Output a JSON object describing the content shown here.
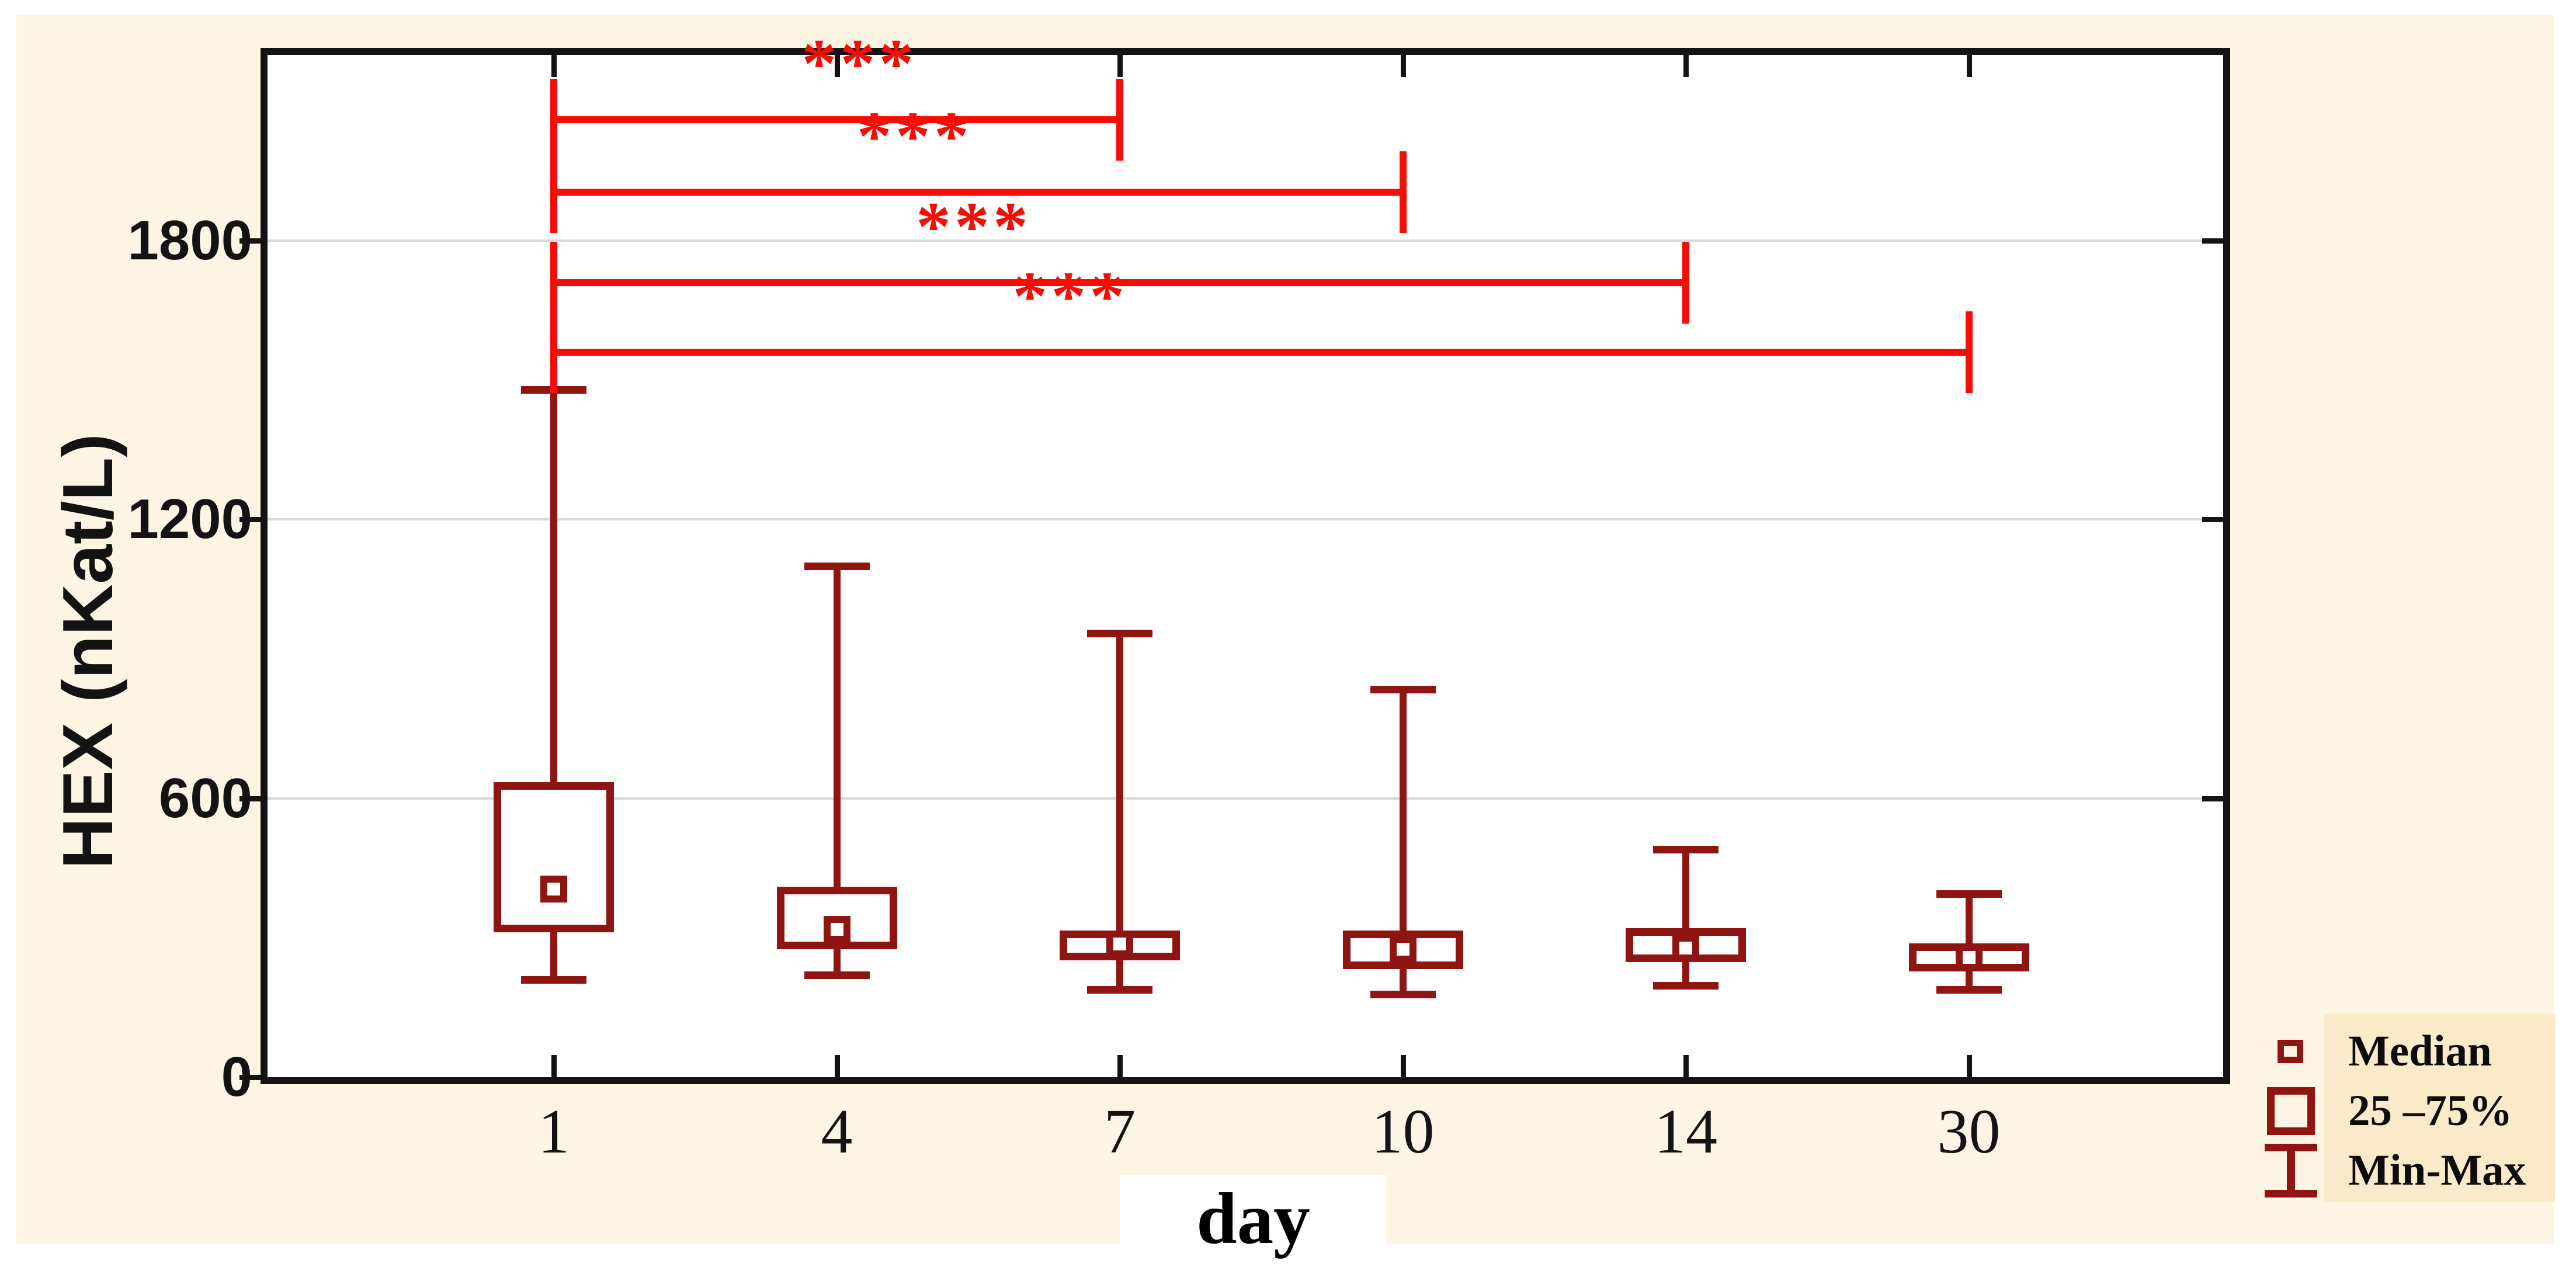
{
  "figure": {
    "background_color": "#ffffff",
    "panel_color": "#fcf5e3",
    "legend_background_color": "#faeac9",
    "frame_color": "#131313",
    "grid_color": "#d9d9d9",
    "box_color": "#8e1511",
    "significance_color": "#f80c06"
  },
  "chart_data": {
    "type": "boxplot",
    "xlabel": "day",
    "ylabel": "HEX (nKat/L)",
    "categories": [
      "1",
      "4",
      "7",
      "10",
      "14",
      "30"
    ],
    "y_ticks": [
      0,
      600,
      1200,
      1800
    ],
    "y_tick_labels": [
      "0",
      "600",
      "1200",
      "1800"
    ],
    "ylim": [
      0,
      2200
    ],
    "grid": "horizontal gridlines at 600, 1200, 1800",
    "boxes": [
      {
        "category": "1",
        "min": 210,
        "q1": 312,
        "median": 405,
        "q3": 635,
        "max": 1480
      },
      {
        "category": "4",
        "min": 220,
        "q1": 275,
        "median": 318,
        "q3": 410,
        "max": 1100
      },
      {
        "category": "7",
        "min": 188,
        "q1": 252,
        "median": 287,
        "q3": 315,
        "max": 955
      },
      {
        "category": "10",
        "min": 178,
        "q1": 233,
        "median": 275,
        "q3": 315,
        "max": 835
      },
      {
        "category": "14",
        "min": 198,
        "q1": 248,
        "median": 278,
        "q3": 320,
        "max": 490
      },
      {
        "category": "30",
        "min": 188,
        "q1": 228,
        "median": 258,
        "q3": 288,
        "max": 395
      }
    ],
    "significance_bars": [
      {
        "from": "1",
        "to": "7",
        "y": 2060,
        "label": "***"
      },
      {
        "from": "1",
        "to": "10",
        "y": 1905,
        "label": "***"
      },
      {
        "from": "1",
        "to": "14",
        "y": 1710,
        "label": "***"
      },
      {
        "from": "1",
        "to": "30",
        "y": 1560,
        "label": "***"
      }
    ],
    "legend": {
      "position": "bottom-right",
      "entries": [
        {
          "symbol": "median-square",
          "label": "Median"
        },
        {
          "symbol": "iqr-box",
          "label": "25 –75%"
        },
        {
          "symbol": "min-max-whisker",
          "label": "Min-Max"
        }
      ]
    }
  }
}
